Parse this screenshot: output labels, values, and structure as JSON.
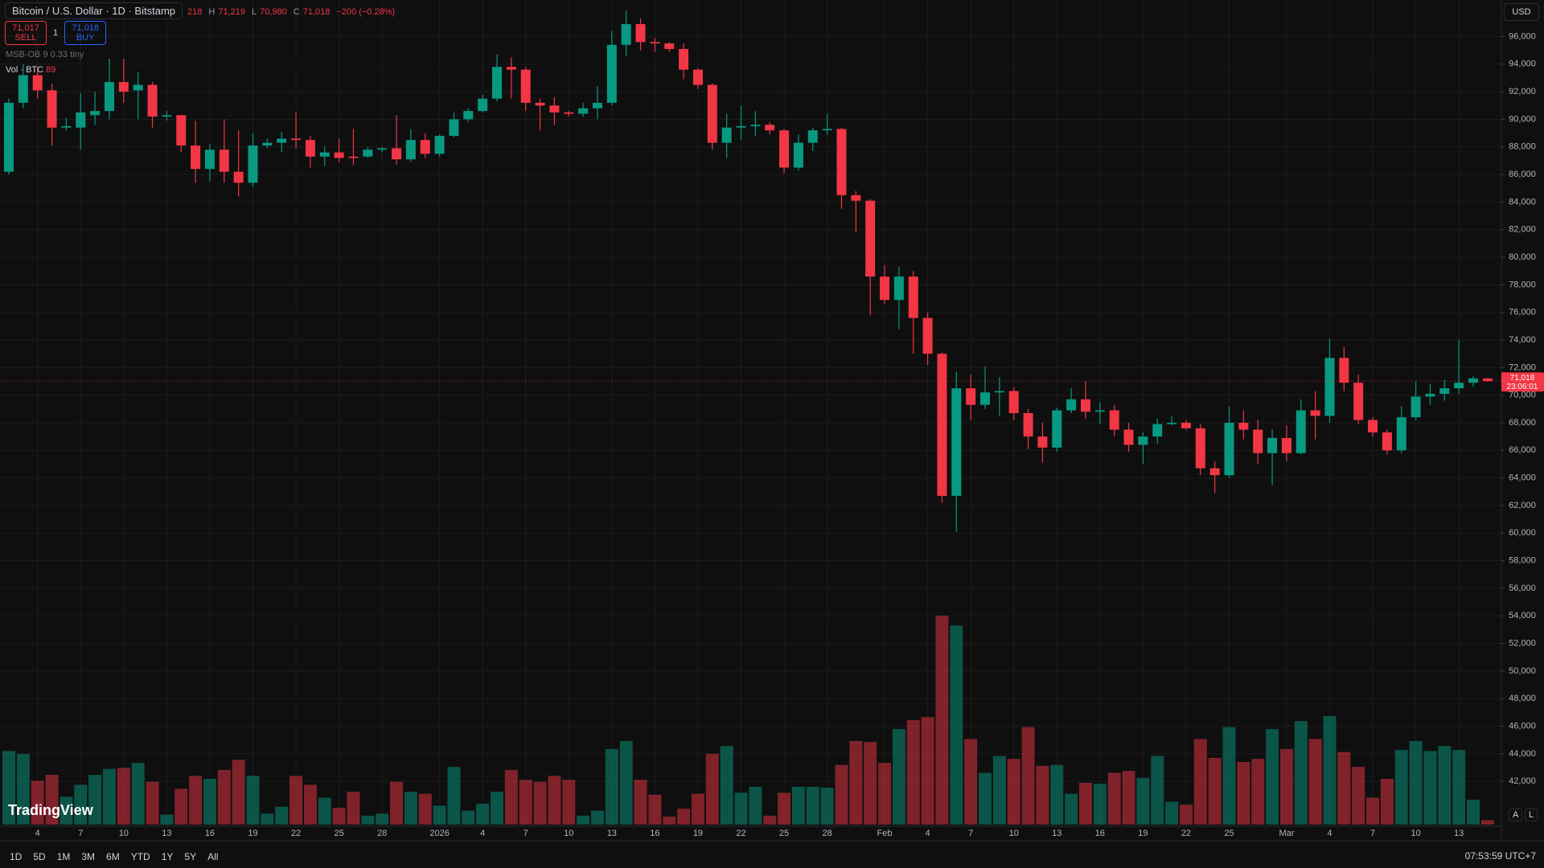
{
  "header": {
    "symbol": "Bitcoin / U.S. Dollar · 1D · Bitstamp",
    "ohlc": [
      {
        "key": null,
        "value": "218"
      },
      {
        "key": "H",
        "value": "71,219"
      },
      {
        "key": "L",
        "value": "70,980"
      },
      {
        "key": "C",
        "value": "71,018"
      },
      {
        "key": null,
        "value": "−200 (−0.28%)"
      }
    ],
    "sell_price": "71,017",
    "sell_label": "SELL",
    "spread": "1",
    "buy_price": "71,018",
    "buy_label": "BUY",
    "indicator": "MSB-OB 9 0.33 tiny",
    "volume_legend": "Vol · BTC",
    "volume_value": "89"
  },
  "price_axis": {
    "currency": "USD",
    "countdown": "23:06:01"
  },
  "footer": {
    "timeframes": [
      "1D",
      "5D",
      "1M",
      "3M",
      "6M",
      "YTD",
      "1Y",
      "5Y",
      "All"
    ],
    "clock": "07:53:59 UTC+7",
    "logo": "TradingView",
    "buttons": [
      "A",
      "L"
    ]
  },
  "chart_data": {
    "type": "candlestick",
    "up_color": "#089981",
    "down_color": "#f23645",
    "grid": true,
    "categories": [
      null,
      null,
      "4",
      null,
      null,
      "7",
      null,
      null,
      "10",
      null,
      null,
      "13",
      null,
      null,
      "16",
      null,
      null,
      "19",
      null,
      null,
      "22",
      null,
      null,
      "25",
      null,
      null,
      "28",
      null,
      null,
      null,
      "2026",
      null,
      null,
      "4",
      null,
      null,
      "7",
      null,
      null,
      "10",
      null,
      null,
      "13",
      null,
      null,
      "16",
      null,
      null,
      "19",
      null,
      null,
      "22",
      null,
      null,
      "25",
      null,
      null,
      "28",
      null,
      null,
      null,
      "Feb",
      null,
      null,
      "4",
      null,
      null,
      "7",
      null,
      null,
      "10",
      null,
      null,
      "13",
      null,
      null,
      "16",
      null,
      null,
      "19",
      null,
      null,
      "22",
      null,
      null,
      "25",
      null,
      null,
      null,
      "Mar",
      null,
      null,
      "4",
      null,
      null,
      "7",
      null,
      null,
      "10",
      null,
      null,
      "13",
      null,
      null
    ],
    "open": [
      86200,
      91200,
      93200,
      92100,
      89400,
      89400,
      90300,
      90600,
      92700,
      92100,
      92500,
      90200,
      90300,
      88100,
      86400,
      87800,
      86200,
      85400,
      88100,
      88300,
      88600,
      88500,
      87300,
      87600,
      87300,
      87300,
      87800,
      87900,
      87100,
      88500,
      87500,
      88800,
      90000,
      90600,
      91500,
      93800,
      93600,
      91200,
      91000,
      90500,
      90400,
      90800,
      91200,
      95400,
      96900,
      95600,
      95500,
      95100,
      93600,
      92500,
      88300,
      89400,
      89500,
      89600,
      89200,
      86500,
      88300,
      89200,
      89300,
      84500,
      84100,
      78600,
      76900,
      78600,
      75600,
      73000,
      62700,
      70500,
      69300,
      70200,
      70300,
      68700,
      67000,
      66200,
      68900,
      69700,
      68800,
      68900,
      67500,
      66400,
      67000,
      67900,
      68000,
      67600,
      64700,
      64200,
      68000,
      67500,
      65800,
      66900,
      65800,
      68900,
      68500,
      72700,
      70900,
      68200,
      67300,
      66000,
      68400,
      69900,
      70100,
      70500,
      70900,
      71218
    ],
    "high": [
      91500,
      94000,
      93800,
      92600,
      90100,
      91900,
      92000,
      94400,
      94400,
      93400,
      92700,
      90600,
      90300,
      89900,
      88200,
      90000,
      89200,
      89000,
      88600,
      89100,
      90500,
      88800,
      88000,
      88600,
      89300,
      88000,
      88000,
      90300,
      89300,
      89000,
      88900,
      90500,
      90800,
      91800,
      94700,
      94500,
      93800,
      91500,
      91600,
      90600,
      91200,
      92400,
      96400,
      97900,
      97300,
      95900,
      95600,
      95500,
      93700,
      92600,
      90400,
      91000,
      90600,
      89800,
      89300,
      88900,
      89400,
      90400,
      89400,
      84800,
      84200,
      79400,
      79300,
      79000,
      76000,
      73100,
      71700,
      71500,
      72100,
      71300,
      70600,
      69000,
      68000,
      69100,
      70500,
      71000,
      69500,
      69300,
      68000,
      67300,
      68300,
      68500,
      68200,
      67900,
      65200,
      69200,
      68900,
      68200,
      67500,
      67800,
      69700,
      70300,
      74100,
      73500,
      71500,
      68400,
      67500,
      69200,
      71000,
      70800,
      71100,
      74000,
      71400,
      71219
    ],
    "low": [
      86000,
      90800,
      91500,
      88100,
      89200,
      87800,
      89600,
      90000,
      91200,
      90000,
      89400,
      89900,
      87600,
      85400,
      85500,
      85400,
      84400,
      85100,
      87900,
      87600,
      87900,
      86500,
      86600,
      86900,
      86700,
      87200,
      87600,
      86700,
      86900,
      87200,
      87300,
      88700,
      89800,
      90500,
      91300,
      91500,
      90600,
      89200,
      89600,
      90200,
      90200,
      90000,
      91000,
      94600,
      95000,
      94900,
      94900,
      92900,
      92200,
      87800,
      87200,
      88500,
      88800,
      88900,
      86100,
      86300,
      87700,
      88900,
      83500,
      81800,
      75800,
      76600,
      74800,
      73000,
      72200,
      62200,
      60100,
      68200,
      69000,
      68500,
      68200,
      66100,
      65100,
      65900,
      68700,
      68300,
      67900,
      67000,
      65900,
      65000,
      66500,
      67800,
      67500,
      64200,
      62900,
      64000,
      66800,
      65000,
      63500,
      65200,
      65700,
      66800,
      68000,
      70300,
      67900,
      67000,
      65700,
      65800,
      68200,
      69300,
      69600,
      70100,
      70600,
      70980
    ],
    "close": [
      91200,
      93200,
      92100,
      89400,
      89500,
      90500,
      90600,
      92700,
      92000,
      92500,
      90200,
      90300,
      88100,
      86400,
      87800,
      86200,
      85400,
      88100,
      88300,
      88600,
      88500,
      87300,
      87600,
      87200,
      87200,
      87800,
      87900,
      87100,
      88500,
      87500,
      88800,
      90000,
      90600,
      91500,
      93800,
      93600,
      91200,
      91000,
      90500,
      90400,
      90800,
      91200,
      95400,
      96900,
      95600,
      95500,
      95100,
      93600,
      92500,
      88300,
      89400,
      89500,
      89600,
      89200,
      86500,
      88300,
      89200,
      89300,
      84500,
      84100,
      78600,
      76900,
      78600,
      75600,
      73000,
      62700,
      70500,
      69300,
      70200,
      70300,
      68700,
      67000,
      66200,
      68900,
      69700,
      68800,
      68900,
      67500,
      66400,
      67000,
      67900,
      68000,
      67600,
      64700,
      64200,
      68000,
      67500,
      65800,
      66900,
      65800,
      68900,
      68500,
      72700,
      70900,
      68200,
      67300,
      66000,
      68400,
      69900,
      70100,
      70500,
      70900,
      71218,
      71018
    ],
    "volume": [
      1480,
      1420,
      880,
      1000,
      560,
      800,
      1000,
      1120,
      1140,
      1240,
      860,
      200,
      720,
      980,
      920,
      1100,
      1300,
      980,
      220,
      360,
      980,
      800,
      540,
      340,
      660,
      180,
      220,
      860,
      660,
      620,
      380,
      1160,
      280,
      420,
      660,
      1100,
      900,
      860,
      980,
      900,
      180,
      280,
      1520,
      1680,
      900,
      600,
      160,
      320,
      620,
      1420,
      1580,
      640,
      760,
      180,
      640,
      760,
      760,
      740,
      1200,
      1680,
      1660,
      1240,
      1920,
      2100,
      2160,
      4200,
      4000,
      1720,
      1040,
      1380,
      1320,
      1960,
      1180,
      1200,
      620,
      840,
      820,
      1040,
      1080,
      940,
      1380,
      460,
      400,
      1720,
      1340,
      1960,
      1260,
      1320,
      1920,
      1520,
      2080,
      1720,
      2180,
      1460,
      1160,
      540,
      920,
      1500,
      1680,
      1480,
      1580,
      1500,
      500,
      89
    ],
    "last_price": {
      "value": 71018,
      "label": "71,018"
    },
    "ylim": [
      38750,
      98650
    ],
    "yticks": [
      {
        "value": 42000,
        "label": "42,000"
      },
      {
        "value": 44000,
        "label": "44,000"
      },
      {
        "value": 46000,
        "label": "46,000"
      },
      {
        "value": 48000,
        "label": "48,000"
      },
      {
        "value": 50000,
        "label": "50,000"
      },
      {
        "value": 52000,
        "label": "52,000"
      },
      {
        "value": 54000,
        "label": "54,000"
      },
      {
        "value": 56000,
        "label": "56,000"
      },
      {
        "value": 58000,
        "label": "58,000"
      },
      {
        "value": 60000,
        "label": "60,000"
      },
      {
        "value": 62000,
        "label": "62,000"
      },
      {
        "value": 64000,
        "label": "64,000"
      },
      {
        "value": 66000,
        "label": "66,000"
      },
      {
        "value": 68000,
        "label": "68,000"
      },
      {
        "value": 70000,
        "label": "70,000"
      },
      {
        "value": 72000,
        "label": "72,000"
      },
      {
        "value": 74000,
        "label": "74,000"
      },
      {
        "value": 76000,
        "label": "76,000"
      },
      {
        "value": 78000,
        "label": "78,000"
      },
      {
        "value": 80000,
        "label": "80,000"
      },
      {
        "value": 82000,
        "label": "82,000"
      },
      {
        "value": 84000,
        "label": "84,000"
      },
      {
        "value": 86000,
        "label": "86,000"
      },
      {
        "value": 88000,
        "label": "88,000"
      },
      {
        "value": 90000,
        "label": "90,000"
      },
      {
        "value": 92000,
        "label": "92,000"
      },
      {
        "value": 94000,
        "label": "94,000"
      },
      {
        "value": 96000,
        "label": "96,000"
      }
    ]
  }
}
